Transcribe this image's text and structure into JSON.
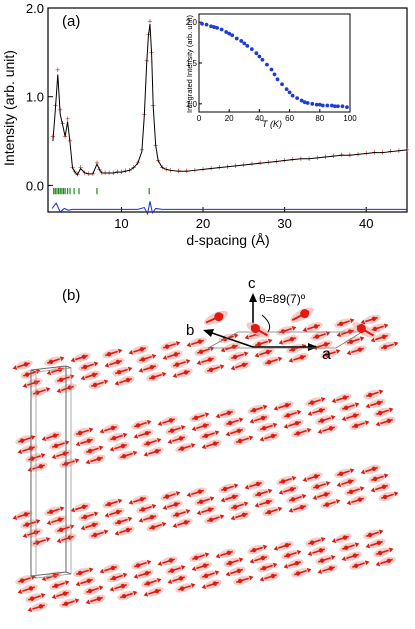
{
  "chart_data": [
    {
      "type": "scatter",
      "panel_label": "(a)",
      "xlabel": "d-spacing (Å)",
      "ylabel": "Intensity (arb. unit)",
      "xlim": [
        1,
        45
      ],
      "ylim": [
        -0.3,
        2.0
      ],
      "x_ticks": [
        "10",
        "20",
        "30",
        "40"
      ],
      "y_ticks": [
        "0.0",
        "1.0",
        "2.0"
      ],
      "x_tick_values": [
        10,
        20,
        30,
        40
      ],
      "y_tick_values": [
        0.0,
        1.0,
        2.0
      ],
      "series": [
        {
          "role": "observed",
          "color": "#c0392b",
          "x": [
            1.6,
            1.9,
            2.2,
            2.5,
            2.8,
            3.1,
            3.4,
            3.7,
            4.0,
            4.3,
            4.6,
            5.0,
            5.5,
            6.0,
            6.5,
            7.0,
            7.3,
            7.6,
            8.0,
            8.5,
            9.0,
            9.5,
            10.0,
            10.5,
            11.0,
            11.5,
            12.0,
            12.5,
            12.8,
            13.1,
            13.3,
            13.5,
            13.7,
            13.9,
            14.2,
            14.5,
            15.0,
            15.5,
            16.0,
            17.0,
            18.0,
            19.0,
            20.0,
            21.0,
            22.0,
            23.0,
            24.0,
            25.0,
            26.0,
            27.0,
            28.0,
            29.0,
            30.0,
            31.0,
            32.0,
            33.0,
            34.0,
            35.0,
            36.0,
            37.0,
            38.0,
            39.0,
            40.0,
            41.0,
            42.0,
            43.0,
            44.0,
            45.0
          ],
          "y": [
            0.55,
            0.9,
            1.3,
            0.85,
            0.7,
            0.55,
            0.75,
            0.5,
            0.2,
            0.15,
            0.12,
            0.2,
            0.14,
            0.13,
            0.13,
            0.25,
            0.18,
            0.14,
            0.14,
            0.14,
            0.14,
            0.15,
            0.15,
            0.16,
            0.17,
            0.2,
            0.25,
            0.4,
            0.8,
            1.4,
            1.7,
            1.85,
            1.5,
            0.9,
            0.45,
            0.28,
            0.2,
            0.18,
            0.17,
            0.16,
            0.16,
            0.17,
            0.18,
            0.19,
            0.2,
            0.21,
            0.22,
            0.23,
            0.24,
            0.25,
            0.26,
            0.27,
            0.28,
            0.29,
            0.3,
            0.3,
            0.31,
            0.32,
            0.33,
            0.34,
            0.34,
            0.35,
            0.36,
            0.37,
            0.37,
            0.38,
            0.39,
            0.4
          ]
        },
        {
          "role": "calculated",
          "color": "#000000",
          "x": [
            1.6,
            1.9,
            2.2,
            2.5,
            2.8,
            3.1,
            3.4,
            3.7,
            4.0,
            4.3,
            4.6,
            5.0,
            5.5,
            6.0,
            6.5,
            7.0,
            7.3,
            7.6,
            8.0,
            8.5,
            9.0,
            9.5,
            10.0,
            10.5,
            11.0,
            11.5,
            12.0,
            12.5,
            12.8,
            13.1,
            13.3,
            13.5,
            13.7,
            13.9,
            14.2,
            14.5,
            15.0,
            15.5,
            16.0,
            17.0,
            18.0,
            19.0,
            20.0,
            21.0,
            22.0,
            23.0,
            24.0,
            25.0,
            26.0,
            27.0,
            28.0,
            29.0,
            30.0,
            31.0,
            32.0,
            33.0,
            34.0,
            35.0,
            36.0,
            37.0,
            38.0,
            39.0,
            40.0,
            41.0,
            42.0,
            43.0,
            44.0,
            45.0
          ],
          "y": [
            0.5,
            0.85,
            1.25,
            0.8,
            0.68,
            0.55,
            0.72,
            0.48,
            0.2,
            0.15,
            0.12,
            0.19,
            0.14,
            0.13,
            0.13,
            0.24,
            0.18,
            0.14,
            0.14,
            0.14,
            0.14,
            0.15,
            0.15,
            0.16,
            0.17,
            0.2,
            0.25,
            0.38,
            0.78,
            1.38,
            1.68,
            1.82,
            1.48,
            0.88,
            0.45,
            0.28,
            0.2,
            0.18,
            0.17,
            0.16,
            0.16,
            0.17,
            0.18,
            0.19,
            0.2,
            0.21,
            0.22,
            0.23,
            0.24,
            0.25,
            0.26,
            0.27,
            0.28,
            0.29,
            0.3,
            0.3,
            0.31,
            0.32,
            0.33,
            0.34,
            0.34,
            0.35,
            0.36,
            0.37,
            0.37,
            0.38,
            0.39,
            0.4
          ]
        },
        {
          "role": "difference",
          "color": "#1a2bd6",
          "x": [
            1.5,
            2,
            2.5,
            3,
            3.5,
            4,
            5,
            6,
            8,
            10,
            12,
            12.8,
            13.2,
            13.5,
            13.8,
            14.2,
            15,
            17,
            20,
            25,
            30,
            35,
            40,
            45
          ],
          "y": [
            -0.26,
            -0.2,
            -0.3,
            -0.26,
            -0.28,
            -0.27,
            -0.27,
            -0.27,
            -0.27,
            -0.27,
            -0.27,
            -0.25,
            -0.32,
            -0.18,
            -0.31,
            -0.26,
            -0.27,
            -0.27,
            -0.27,
            -0.27,
            -0.27,
            -0.27,
            -0.27,
            -0.27
          ]
        }
      ],
      "reflection_ticks": [
        1.7,
        1.9,
        2.1,
        2.3,
        2.5,
        2.7,
        2.9,
        3.1,
        3.4,
        3.7,
        4.2,
        4.8,
        7.0,
        13.4
      ]
    },
    {
      "type": "scatter",
      "xlabel": "T (K)",
      "ylabel": "Integrated Intensity (arb. unit)",
      "xlim": [
        0,
        100
      ],
      "ylim": [
        0.9,
        2.1
      ],
      "x_ticks": [
        "0",
        "20",
        "40",
        "60",
        "80",
        "100"
      ],
      "y_ticks": [
        "1.0",
        "1.5",
        "2.0"
      ],
      "x_tick_values": [
        0,
        20,
        40,
        60,
        80,
        100
      ],
      "y_tick_values": [
        1.0,
        1.5,
        2.0
      ],
      "series": [
        {
          "color": "#1f3bd6",
          "x": [
            2,
            5,
            8,
            10,
            12,
            15,
            18,
            20,
            22,
            25,
            28,
            30,
            32,
            35,
            38,
            40,
            42,
            45,
            48,
            50,
            52,
            55,
            58,
            60,
            62,
            65,
            68,
            70,
            72,
            75,
            78,
            80,
            82,
            85,
            88,
            90,
            92,
            95,
            98
          ],
          "y": [
            1.98,
            1.97,
            1.95,
            1.94,
            1.93,
            1.91,
            1.88,
            1.86,
            1.84,
            1.8,
            1.77,
            1.74,
            1.71,
            1.67,
            1.62,
            1.58,
            1.54,
            1.48,
            1.42,
            1.36,
            1.3,
            1.24,
            1.18,
            1.14,
            1.1,
            1.07,
            1.04,
            1.02,
            1.01,
            1.0,
            0.99,
            0.99,
            0.98,
            0.98,
            0.98,
            0.97,
            0.97,
            0.97,
            0.96
          ]
        }
      ]
    }
  ],
  "panel_b": {
    "label": "(b)",
    "axis_c": "c",
    "axis_a": "a",
    "axis_b": "b",
    "angle_label": "θ=89(7)º"
  },
  "colors": {
    "moment": "#e01a12",
    "ellipsoid": "#f3c2bc",
    "cell": "#555555"
  }
}
